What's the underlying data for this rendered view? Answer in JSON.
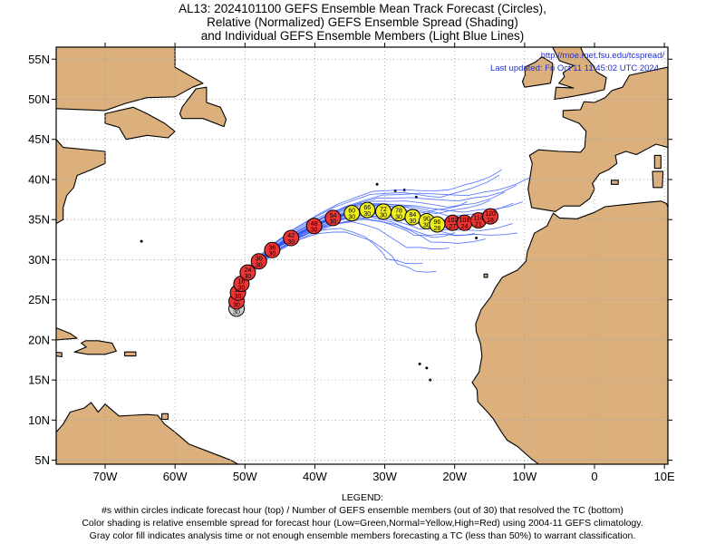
{
  "title": {
    "line1": "AL13: 2024101100 GEFS Ensemble Mean Track Forecast (Circles),",
    "line2": "Relative (Normalized) GEFS Ensemble Spread (Shading)",
    "line3": "and Individual GEFS Ensemble Members (Light Blue Lines)"
  },
  "header": {
    "url": "http://moe.met.fsu.edu/tcspread/",
    "updated": "Last updated: Fri Oct 11 11:45:02 UTC 2024"
  },
  "axes": {
    "lat_labels": [
      "5N",
      "10N",
      "15N",
      "20N",
      "25N",
      "30N",
      "35N",
      "40N",
      "45N",
      "50N",
      "55N"
    ],
    "lon_labels": [
      "70W",
      "60W",
      "50W",
      "40W",
      "30W",
      "20W",
      "10W",
      "0",
      "10E"
    ],
    "lat_range": [
      4.5,
      56.5
    ],
    "lon_range": [
      -77,
      10.5
    ],
    "grid": true
  },
  "legend": {
    "heading": "LEGEND:",
    "line1": "#s within circles indicate forecast hour (top) / Number of GEFS ensemble members (out of 30) that resolved the TC (bottom)",
    "line2": "Color shading is relative ensemble spread for forecast hour (Low=Green,Normal=Yellow,High=Red) using 2004-11 GEFS climatology.",
    "line3": "Gray color fill indicates analysis time or not enough ensemble members forecasting a TC (less than 50%) to warrant classification."
  },
  "colors": {
    "land": "#dcb07c",
    "ocean": "#ffffff",
    "grid": "#999999",
    "track": "#3355ee",
    "member": "#4466ff",
    "red": "#ee3333",
    "yellow": "#eeee22",
    "gray": "#d0d0d0"
  },
  "track_points": [
    {
      "hour": "0",
      "members": "30",
      "lon": -51.2,
      "lat": 23.9,
      "spread": "gray"
    },
    {
      "hour": "6",
      "members": "30",
      "lon": -51.2,
      "lat": 24.8,
      "spread": "red"
    },
    {
      "hour": "12",
      "members": "30",
      "lon": -51.0,
      "lat": 25.9,
      "spread": "red"
    },
    {
      "hour": "18",
      "members": "30",
      "lon": -50.5,
      "lat": 27.0,
      "spread": "red"
    },
    {
      "hour": "24",
      "members": "30",
      "lon": -49.6,
      "lat": 28.4,
      "spread": "red"
    },
    {
      "hour": "30",
      "members": "30",
      "lon": -48.0,
      "lat": 29.8,
      "spread": "red"
    },
    {
      "hour": "36",
      "members": "30",
      "lon": -46.1,
      "lat": 31.2,
      "spread": "red"
    },
    {
      "hour": "42",
      "members": "30",
      "lon": -43.4,
      "lat": 32.7,
      "spread": "red"
    },
    {
      "hour": "48",
      "members": "30",
      "lon": -40.1,
      "lat": 34.2,
      "spread": "red"
    },
    {
      "hour": "54",
      "members": "30",
      "lon": -37.4,
      "lat": 35.2,
      "spread": "red"
    },
    {
      "hour": "60",
      "members": "30",
      "lon": -34.7,
      "lat": 35.8,
      "spread": "yellow"
    },
    {
      "hour": "66",
      "members": "30",
      "lon": -32.5,
      "lat": 36.2,
      "spread": "yellow"
    },
    {
      "hour": "72",
      "members": "30",
      "lon": -30.2,
      "lat": 36.0,
      "spread": "yellow"
    },
    {
      "hour": "78",
      "members": "30",
      "lon": -28.0,
      "lat": 35.8,
      "spread": "yellow"
    },
    {
      "hour": "84",
      "members": "30",
      "lon": -26.0,
      "lat": 35.3,
      "spread": "yellow"
    },
    {
      "hour": "90",
      "members": "30",
      "lon": -24.0,
      "lat": 34.8,
      "spread": "yellow"
    },
    {
      "hour": "96",
      "members": "28",
      "lon": -22.5,
      "lat": 34.4,
      "spread": "yellow"
    },
    {
      "hour": "102",
      "members": "27",
      "lon": -20.3,
      "lat": 34.6,
      "spread": "red"
    },
    {
      "hour": "108",
      "members": "24",
      "lon": -18.6,
      "lat": 34.6,
      "spread": "red"
    },
    {
      "hour": "114",
      "members": "21",
      "lon": -16.6,
      "lat": 34.9,
      "spread": "red"
    },
    {
      "hour": "120",
      "members": "18",
      "lon": -14.9,
      "lat": 35.4,
      "spread": "red"
    }
  ]
}
